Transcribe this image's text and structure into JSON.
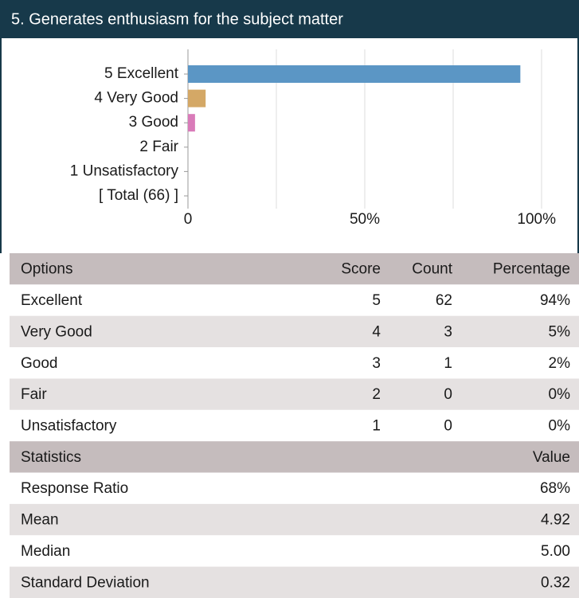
{
  "chart_data": {
    "type": "bar",
    "orientation": "horizontal",
    "title": "5. Generates enthusiasm for the subject matter",
    "categories": [
      "5 Excellent",
      "4 Very Good",
      "3 Good",
      "2 Fair",
      "1 Unsatisfactory",
      "[ Total (66) ]"
    ],
    "values": [
      94,
      5,
      2,
      0,
      0,
      null
    ],
    "colors": [
      "#5b96c5",
      "#d4a866",
      "#d97bb9",
      "#8fbf6a",
      "#e07b5a",
      null
    ],
    "xlim": [
      0,
      100
    ],
    "xticks": [
      0,
      {
        "value": 50,
        "label": "50%"
      },
      {
        "value": 100,
        "label": "100%"
      }
    ],
    "minor_xticks": [
      25,
      75
    ],
    "grid": true
  },
  "table": {
    "columns": [
      "Options",
      "Score",
      "Count",
      "Percentage"
    ],
    "rows": [
      [
        "Excellent",
        "5",
        "62",
        "94%"
      ],
      [
        "Very Good",
        "4",
        "3",
        "5%"
      ],
      [
        "Good",
        "3",
        "1",
        "2%"
      ],
      [
        "Fair",
        "2",
        "0",
        "0%"
      ],
      [
        "Unsatisfactory",
        "1",
        "0",
        "0%"
      ]
    ]
  },
  "statistics": {
    "columns": [
      "Statistics",
      "Value"
    ],
    "rows": [
      [
        "Response Ratio",
        "68%"
      ],
      [
        "Mean",
        "4.92"
      ],
      [
        "Median",
        "5.00"
      ],
      [
        "Standard Deviation",
        "0.32"
      ]
    ]
  }
}
